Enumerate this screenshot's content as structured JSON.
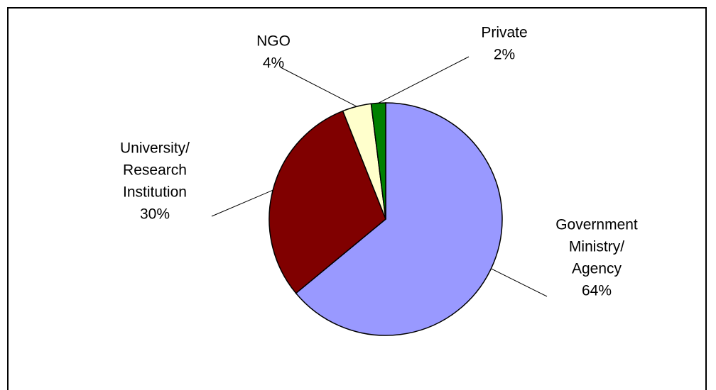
{
  "chart_data": {
    "type": "pie",
    "title": "",
    "slices": [
      {
        "label": [
          "Government",
          "Ministry/",
          "Agency"
        ],
        "value": 64,
        "pct_label": "64%",
        "color": "#9999ff"
      },
      {
        "label": [
          "University/",
          "Research",
          "Institution"
        ],
        "value": 30,
        "pct_label": "30%",
        "color": "#800000"
      },
      {
        "label": [
          "NGO"
        ],
        "value": 4,
        "pct_label": "4%",
        "color": "#ffffcc"
      },
      {
        "label": [
          "Private"
        ],
        "value": 2,
        "pct_label": "2%",
        "color": "#008000"
      }
    ],
    "start_angle_deg": 0,
    "direction": "clockwise",
    "legend": "none",
    "data_labels": "outside-with-leader-lines"
  }
}
